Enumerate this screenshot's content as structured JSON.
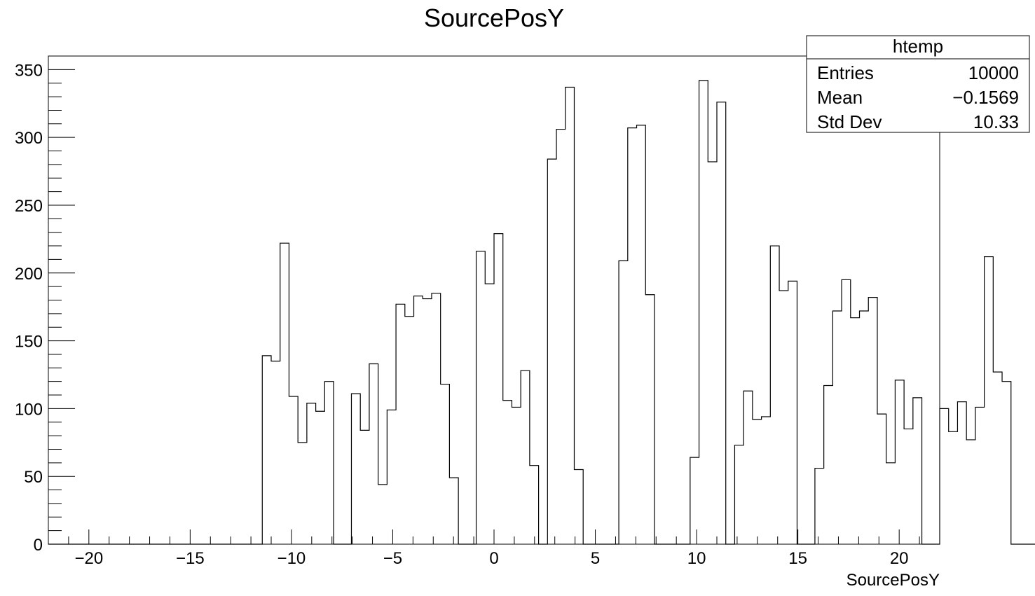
{
  "chart_data": {
    "type": "histogram",
    "title": "SourcePosY",
    "xlabel": "SourcePosY",
    "ylabel": "",
    "xlim": [
      -22,
      22
    ],
    "ylim": [
      0,
      360
    ],
    "bin_width": 0.44,
    "x_ticks": [
      -20,
      -15,
      -10,
      -5,
      0,
      5,
      10,
      15,
      20
    ],
    "x_tick_labels": [
      "−20",
      "−15",
      "−10",
      "−5",
      "0",
      "5",
      "10",
      "15",
      "20"
    ],
    "y_ticks": [
      0,
      50,
      100,
      150,
      200,
      250,
      300,
      350
    ],
    "y_tick_labels": [
      "0",
      "50",
      "100",
      "150",
      "200",
      "250",
      "300",
      "350"
    ],
    "grid": false,
    "legend": "none",
    "line_color": "#000000",
    "values": [
      0,
      0,
      0,
      0,
      0,
      0,
      0,
      0,
      0,
      0,
      0,
      0,
      0,
      0,
      0,
      0,
      0,
      0,
      0,
      0,
      0,
      0,
      0,
      0,
      139,
      135,
      222,
      109,
      75,
      104,
      98,
      120,
      0,
      0,
      111,
      84,
      133,
      44,
      99,
      177,
      168,
      183,
      181,
      185,
      118,
      49,
      0,
      0,
      216,
      192,
      229,
      106,
      101,
      128,
      58,
      0,
      284,
      306,
      337,
      55,
      0,
      0,
      0,
      0,
      209,
      307,
      309,
      184,
      0,
      0,
      0,
      0,
      64,
      342,
      282,
      326,
      0,
      73,
      113,
      92,
      94,
      220,
      187,
      194,
      0,
      0,
      56,
      117,
      172,
      195,
      167,
      172,
      182,
      96,
      60,
      121,
      85,
      108,
      0,
      0,
      100,
      83,
      105,
      77,
      101,
      212,
      127,
      120,
      0,
      0,
      0,
      0,
      0,
      0,
      0,
      0
    ]
  },
  "stats_box": {
    "title": "htemp",
    "rows": [
      {
        "label": "Entries",
        "value": "10000"
      },
      {
        "label": "Mean",
        "value": "−0.1569"
      },
      {
        "label": "Std Dev",
        "value": "10.33"
      }
    ]
  }
}
